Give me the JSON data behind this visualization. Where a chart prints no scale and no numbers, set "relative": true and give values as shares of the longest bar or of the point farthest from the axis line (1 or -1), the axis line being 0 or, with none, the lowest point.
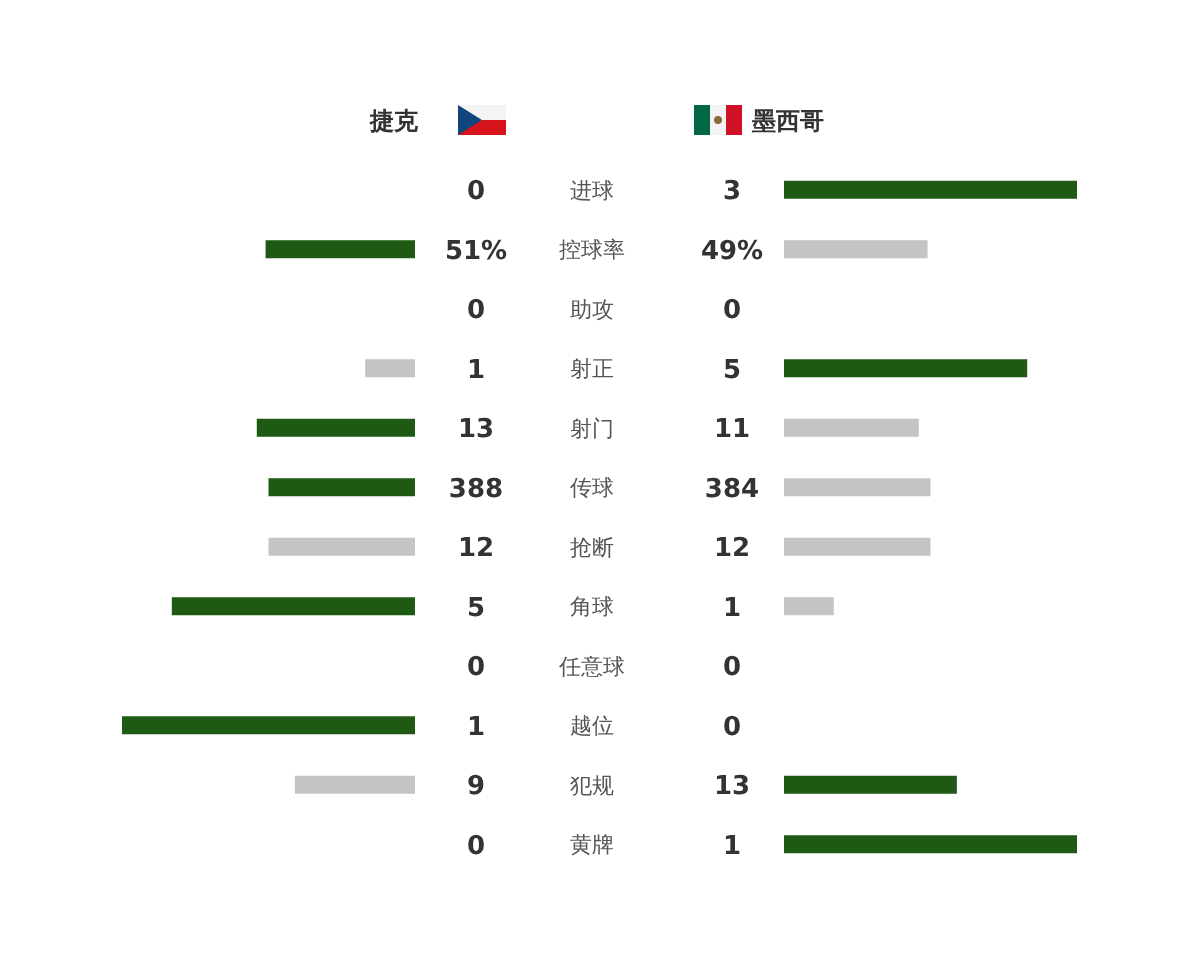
{
  "chart_data": [
    {
      "type": "bar",
      "orientation": "horizontal",
      "relative": true,
      "title": "捷克",
      "tick_labels": false,
      "categories": [
        "进球",
        "控球率",
        "助攻",
        "射正",
        "射门",
        "传球",
        "抢断",
        "角球",
        "任意球",
        "越位",
        "犯规",
        "黄牌"
      ],
      "values": [
        0,
        -0.51,
        0,
        -0.17,
        -0.54,
        -0.5,
        -0.5,
        -0.83,
        0,
        -1,
        -0.41,
        0
      ],
      "colors": [
        null,
        "#1e5a14",
        null,
        "#c4c4c4",
        "#1e5a14",
        "#1e5a14",
        "#c4c4c4",
        "#1e5a14",
        null,
        "#1e5a14",
        "#c4c4c4",
        null
      ],
      "annotations": [
        "0",
        "51%",
        "0",
        "1",
        "13",
        "388",
        "12",
        "5",
        "0",
        "1",
        "9",
        "0"
      ]
    },
    {
      "type": "bar",
      "orientation": "horizontal",
      "relative": true,
      "title": "墨西哥",
      "tick_labels": "y",
      "categories": [
        "进球",
        "控球率",
        "助攻",
        "射正",
        "射门",
        "传球",
        "抢断",
        "角球",
        "任意球",
        "越位",
        "犯规",
        "黄牌"
      ],
      "values": [
        1,
        0.49,
        0,
        0.83,
        0.46,
        0.5,
        0.5,
        0.17,
        0,
        0,
        0.59,
        1
      ],
      "colors": [
        "#1e5a14",
        "#c4c4c4",
        null,
        "#1e5a14",
        "#c4c4c4",
        "#c4c4c4",
        "#c4c4c4",
        "#c4c4c4",
        null,
        null,
        "#1e5a14",
        "#1e5a14"
      ],
      "annotations": [
        "3",
        "49%",
        "0",
        "5",
        "11",
        "384",
        "12",
        "1",
        "0",
        "0",
        "13",
        "1"
      ]
    }
  ]
}
